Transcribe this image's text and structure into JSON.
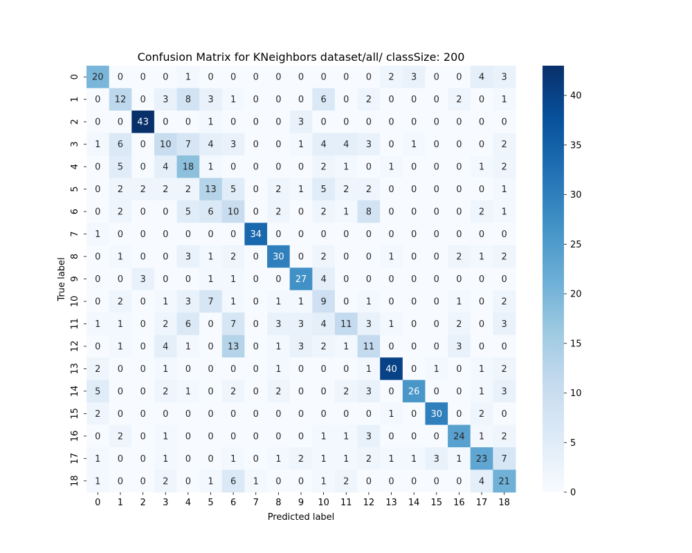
{
  "chart_data": {
    "type": "heatmap",
    "title": "Confusion Matrix for KNeighbors dataset/all/ classSize: 200",
    "xlabel": "Predicted label",
    "ylabel": "True label",
    "x_categories": [
      "0",
      "1",
      "2",
      "3",
      "4",
      "5",
      "6",
      "7",
      "8",
      "9",
      "10",
      "11",
      "12",
      "13",
      "14",
      "15",
      "16",
      "17",
      "18"
    ],
    "y_categories": [
      "0",
      "1",
      "2",
      "3",
      "4",
      "5",
      "6",
      "7",
      "8",
      "9",
      "10",
      "11",
      "12",
      "13",
      "14",
      "15",
      "16",
      "17",
      "18"
    ],
    "values": [
      [
        20,
        0,
        0,
        0,
        1,
        0,
        0,
        0,
        0,
        0,
        0,
        0,
        0,
        2,
        3,
        0,
        0,
        4,
        3
      ],
      [
        0,
        12,
        0,
        3,
        8,
        3,
        1,
        0,
        0,
        0,
        6,
        0,
        2,
        0,
        0,
        0,
        2,
        0,
        1
      ],
      [
        0,
        0,
        43,
        0,
        0,
        1,
        0,
        0,
        0,
        3,
        0,
        0,
        0,
        0,
        0,
        0,
        0,
        0,
        0
      ],
      [
        1,
        6,
        0,
        10,
        7,
        4,
        3,
        0,
        0,
        1,
        4,
        4,
        3,
        0,
        1,
        0,
        0,
        0,
        2
      ],
      [
        0,
        5,
        0,
        4,
        18,
        1,
        0,
        0,
        0,
        0,
        2,
        1,
        0,
        1,
        0,
        0,
        0,
        1,
        2
      ],
      [
        0,
        2,
        2,
        2,
        2,
        13,
        5,
        0,
        2,
        1,
        5,
        2,
        2,
        0,
        0,
        0,
        0,
        0,
        1
      ],
      [
        0,
        2,
        0,
        0,
        5,
        6,
        10,
        0,
        2,
        0,
        2,
        1,
        8,
        0,
        0,
        0,
        0,
        2,
        1
      ],
      [
        1,
        0,
        0,
        0,
        0,
        0,
        0,
        34,
        0,
        0,
        0,
        0,
        0,
        0,
        0,
        0,
        0,
        0,
        0
      ],
      [
        0,
        1,
        0,
        0,
        3,
        1,
        2,
        0,
        30,
        0,
        2,
        0,
        0,
        1,
        0,
        0,
        2,
        1,
        2
      ],
      [
        0,
        0,
        3,
        0,
        0,
        1,
        1,
        0,
        0,
        27,
        4,
        0,
        0,
        0,
        0,
        0,
        0,
        0,
        0
      ],
      [
        0,
        2,
        0,
        1,
        3,
        7,
        1,
        0,
        1,
        1,
        9,
        0,
        1,
        0,
        0,
        0,
        1,
        0,
        2
      ],
      [
        1,
        1,
        0,
        2,
        6,
        0,
        7,
        0,
        3,
        3,
        4,
        11,
        3,
        1,
        0,
        0,
        2,
        0,
        3
      ],
      [
        0,
        1,
        0,
        4,
        1,
        0,
        13,
        0,
        1,
        3,
        2,
        1,
        11,
        0,
        0,
        0,
        3,
        0,
        0
      ],
      [
        2,
        0,
        0,
        1,
        0,
        0,
        0,
        0,
        1,
        0,
        0,
        0,
        1,
        40,
        0,
        1,
        0,
        1,
        2
      ],
      [
        5,
        0,
        0,
        2,
        1,
        0,
        2,
        0,
        2,
        0,
        0,
        2,
        3,
        0,
        26,
        0,
        0,
        1,
        3
      ],
      [
        2,
        0,
        0,
        0,
        0,
        0,
        0,
        0,
        0,
        0,
        0,
        0,
        0,
        1,
        0,
        30,
        0,
        2,
        0
      ],
      [
        0,
        2,
        0,
        1,
        0,
        0,
        0,
        0,
        0,
        0,
        1,
        1,
        3,
        0,
        0,
        0,
        24,
        1,
        2
      ],
      [
        1,
        0,
        0,
        1,
        0,
        0,
        1,
        0,
        1,
        2,
        1,
        1,
        2,
        1,
        1,
        3,
        1,
        23,
        7
      ],
      [
        1,
        0,
        0,
        2,
        0,
        1,
        6,
        1,
        0,
        0,
        1,
        2,
        0,
        0,
        0,
        0,
        0,
        4,
        21
      ]
    ],
    "vmin": 0,
    "vmax": 43,
    "colormap": "Blues",
    "colorbar_ticks": [
      0,
      5,
      10,
      15,
      20,
      25,
      30,
      35,
      40
    ],
    "grid": false
  }
}
